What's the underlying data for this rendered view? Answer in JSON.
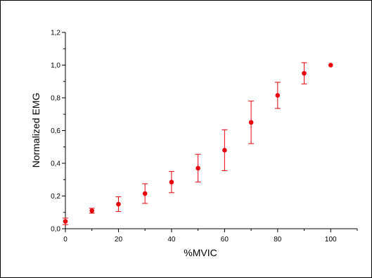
{
  "chart_data": {
    "type": "scatter",
    "title": "",
    "xlabel": "%MVIC",
    "ylabel": "Normalized EMG",
    "xlim": [
      0,
      110
    ],
    "ylim": [
      0,
      1.2
    ],
    "xticks": [
      0,
      20,
      40,
      60,
      80,
      100
    ],
    "xtick_labels": [
      "0",
      "20",
      "40",
      "60",
      "80",
      "100"
    ],
    "yticks": [
      0,
      0.2,
      0.4,
      0.6,
      0.8,
      1.0,
      1.2
    ],
    "ytick_labels": [
      "0,0",
      "0,2",
      "0,4",
      "0,6",
      "0,8",
      "1,0",
      "1,2"
    ],
    "grid": false,
    "marker_color": "#e8000b",
    "series": [
      {
        "x": [
          0,
          10,
          20,
          30,
          40,
          50,
          60,
          70,
          80,
          90,
          100
        ],
        "y": [
          0.045,
          0.11,
          0.15,
          0.215,
          0.285,
          0.37,
          0.48,
          0.65,
          0.815,
          0.95,
          1.0
        ],
        "err_low": [
          0.02,
          0.015,
          0.045,
          0.06,
          0.065,
          0.085,
          0.125,
          0.13,
          0.08,
          0.065,
          0.0
        ],
        "err_high": [
          0.02,
          0.015,
          0.045,
          0.06,
          0.065,
          0.085,
          0.125,
          0.13,
          0.08,
          0.065,
          0.0
        ]
      }
    ]
  }
}
